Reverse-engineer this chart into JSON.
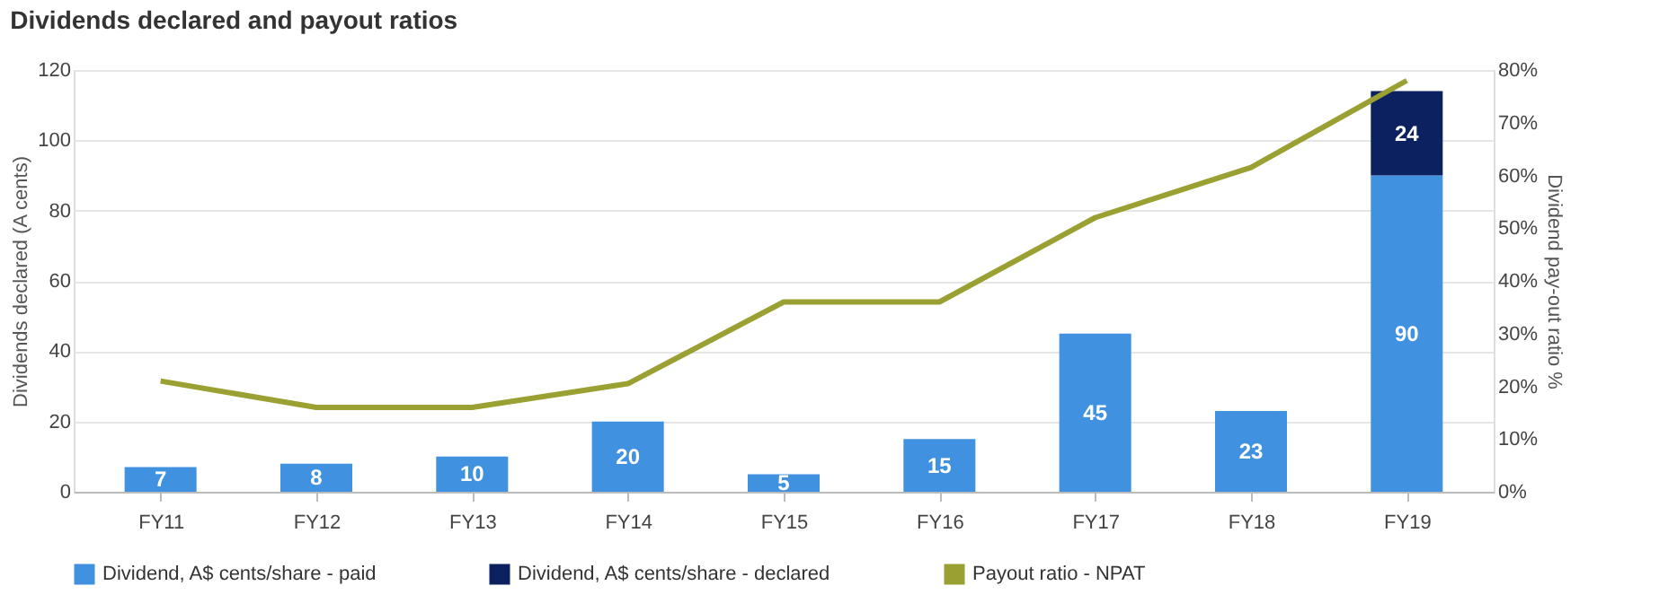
{
  "chart_data": {
    "type": "bar",
    "title": "Dividends declared and payout ratios",
    "ylabel": "Dividends declared (A cents)",
    "y2label": "Dividend pay-out ratio %",
    "categories": [
      "FY11",
      "FY12",
      "FY13",
      "FY14",
      "FY15",
      "FY16",
      "FY17",
      "FY18",
      "FY19"
    ],
    "stacked": true,
    "grid": "y",
    "legend": "bottom",
    "ylim": [
      0,
      120
    ],
    "yticks": [
      0,
      20,
      40,
      60,
      80,
      100,
      120
    ],
    "y2lim": [
      0,
      80
    ],
    "y2ticks": [
      {
        "value": 0,
        "label": "0%"
      },
      {
        "value": 10,
        "label": "10%"
      },
      {
        "value": 20,
        "label": "20%"
      },
      {
        "value": 30,
        "label": "30%"
      },
      {
        "value": 40,
        "label": "40%"
      },
      {
        "value": 50,
        "label": "50%"
      },
      {
        "value": 60,
        "label": "60%"
      },
      {
        "value": 70,
        "label": "70%"
      },
      {
        "value": 80,
        "label": "80%"
      }
    ],
    "series": [
      {
        "name": "Dividend, A$ cents/share - paid",
        "color": "#4191e1",
        "values": [
          7,
          8,
          10,
          20,
          5,
          15,
          45,
          23,
          90
        ],
        "value_labels": [
          "7",
          "8",
          "10",
          "20",
          "5",
          "15",
          "45",
          "23",
          "90"
        ]
      },
      {
        "name": "Dividend, A$ cents/share - declared",
        "color": "#0b2160",
        "values": [
          null,
          null,
          null,
          null,
          null,
          null,
          null,
          null,
          24
        ],
        "value_labels": [
          null,
          null,
          null,
          null,
          null,
          null,
          null,
          null,
          "24"
        ]
      },
      {
        "name": "Payout ratio - NPAT",
        "color": "#9aa032",
        "type": "line",
        "axis": "y2",
        "values": [
          21,
          16,
          16,
          20.5,
          36,
          36,
          52,
          61.5,
          78
        ]
      }
    ]
  }
}
